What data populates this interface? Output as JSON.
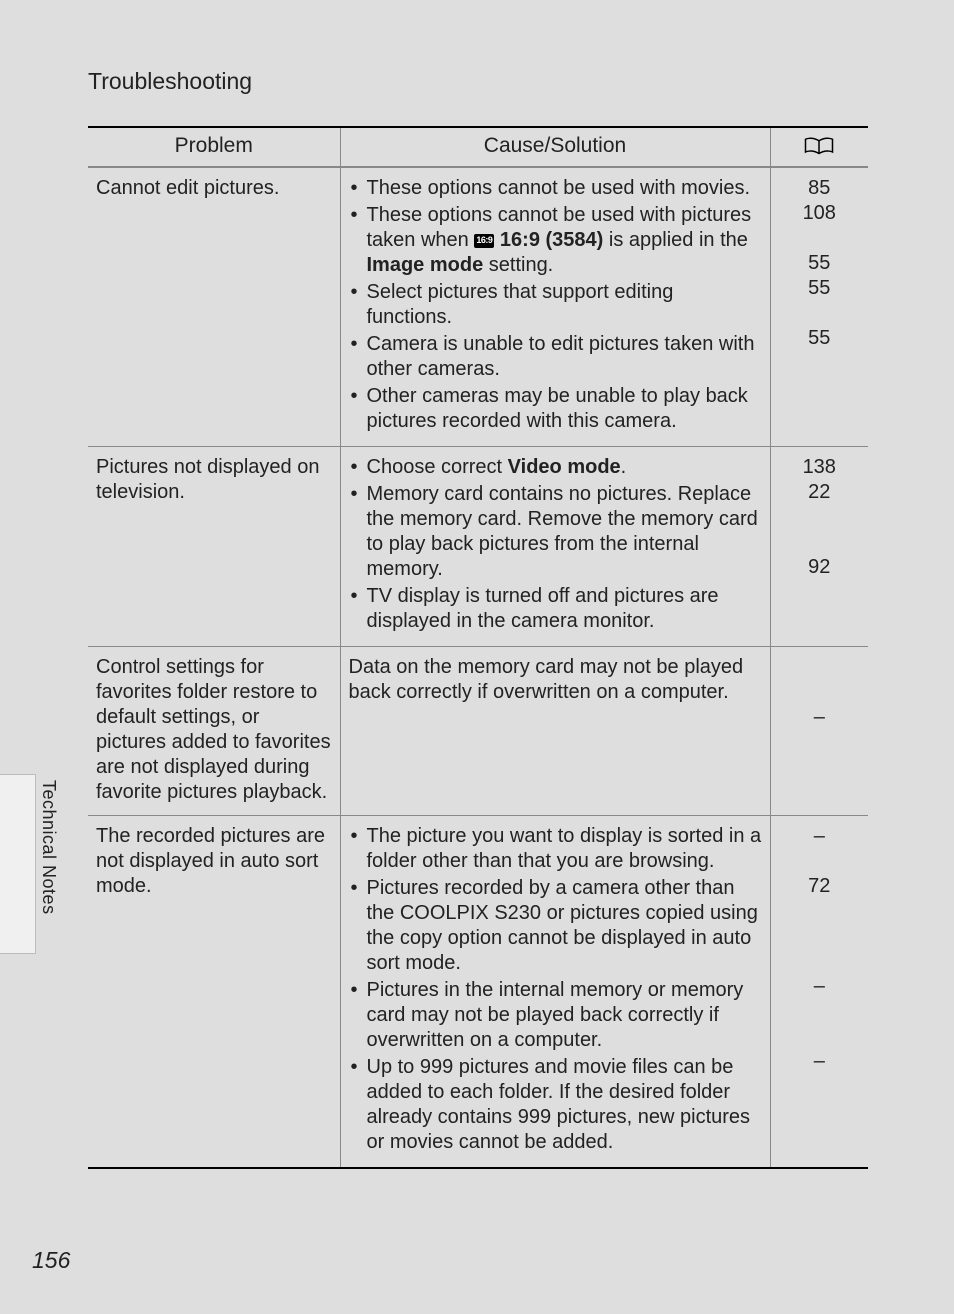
{
  "pageTitle": "Troubleshooting",
  "sideTabLabel": "Technical Notes",
  "pageNumber": "156",
  "headers": {
    "problem": "Problem",
    "cause": "Cause/Solution"
  },
  "rows": [
    {
      "problem": "Cannot edit pictures.",
      "causes": [
        {
          "pre": "These options cannot be used with movies."
        },
        {
          "pre": "These options cannot be used with pictures taken when ",
          "icon": "16:9",
          "boldAfterIcon": " 16:9 (3584)",
          "mid": " is applied in the ",
          "bold2": "Image mode",
          "post": " setting."
        },
        {
          "pre": "Select pictures that support editing functions."
        },
        {
          "pre": "Camera is unable to edit pictures taken with other cameras."
        },
        {
          "pre": "Other cameras may be unable to play back pictures recorded with this camera."
        }
      ],
      "refs": [
        "85",
        "108",
        "",
        "55",
        "55",
        "",
        "55"
      ]
    },
    {
      "problem": "Pictures not displayed on television.",
      "causes": [
        {
          "pre": "Choose correct ",
          "bold2": "Video mode",
          "post": "."
        },
        {
          "pre": "Memory card contains no pictures. Replace the memory card. Remove the memory card to play back pictures from the internal memory."
        },
        {
          "pre": "TV display is turned off and pictures are displayed in the camera monitor."
        }
      ],
      "refs": [
        "138",
        "22",
        "",
        "",
        "92"
      ]
    },
    {
      "problem": "Control settings for favorites folder restore to default settings, or pictures added to favorites are not displayed during favorite pictures playback.",
      "causePlain": "Data on the memory card may not be played back correctly if overwritten on a computer.",
      "refs": [
        "",
        "",
        "–"
      ]
    },
    {
      "problem": "The recorded pictures are not displayed in auto sort mode.",
      "causes": [
        {
          "pre": "The picture you want to display is sorted in a folder other than that you are browsing."
        },
        {
          "pre": "Pictures recorded by a camera other than the COOLPIX S230 or pictures copied using the copy option cannot be displayed in auto sort mode."
        },
        {
          "pre": "Pictures in the internal memory or memory card may not be played back correctly if overwritten on a computer."
        },
        {
          "pre": "Up to 999 pictures and movie files can be added to each folder. If the desired folder already contains 999 pictures, new pictures or movies cannot be added."
        }
      ],
      "refs": [
        "–",
        "",
        "72",
        "",
        "",
        "",
        "–",
        "",
        "",
        "–"
      ]
    }
  ]
}
